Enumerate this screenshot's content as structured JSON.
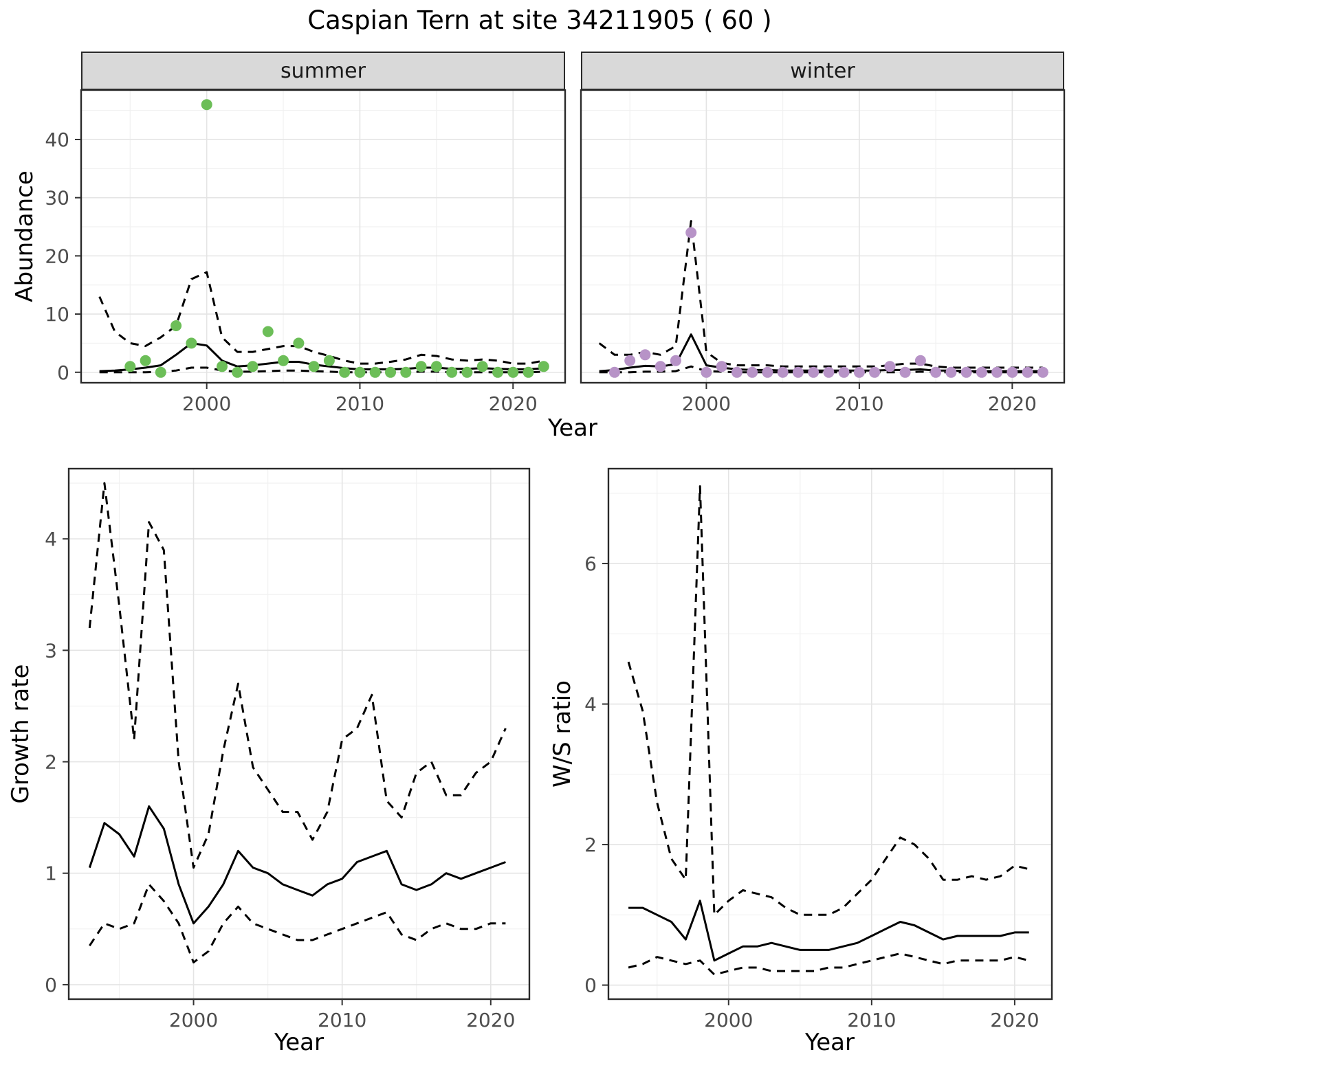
{
  "title": "Caspian Tern at site 34211905 ( 60 )",
  "facets": {
    "summer": "summer",
    "winter": "winter"
  },
  "axes": {
    "abundance_label": "Abundance",
    "year_label": "Year",
    "growth_label": "Growth rate",
    "ws_label": "W/S ratio"
  },
  "colors": {
    "summer_point": "#6cbe58",
    "winter_point": "#b793c7",
    "line": "#000000",
    "strip_bg": "#d9d9d9",
    "panel_border": "#2a2a2a",
    "grid_major": "#e4e4e4",
    "grid_minor": "#f1f1f1",
    "tick": "#333333",
    "tick_label": "#4d4d4d",
    "background": "#ffffff"
  },
  "chart_data": [
    {
      "id": "summer",
      "type": "scatter",
      "facet_label": "summer",
      "xlabel": "Year",
      "ylabel": "Abundance",
      "xlim": [
        1991.8,
        2023.4
      ],
      "ylim": [
        -1.8,
        48.5
      ],
      "xticks": [
        2000,
        2010,
        2020
      ],
      "yticks": [
        0,
        10,
        20,
        30,
        40
      ],
      "point_color": "#6cbe58",
      "points": {
        "x": [
          1995,
          1996,
          1997,
          1998,
          1999,
          2000,
          2001,
          2002,
          2003,
          2004,
          2005,
          2006,
          2007,
          2008,
          2009,
          2010,
          2011,
          2012,
          2013,
          2014,
          2015,
          2016,
          2017,
          2018,
          2019,
          2020,
          2021,
          2022
        ],
        "y": [
          1,
          2,
          0,
          8,
          5,
          46,
          1,
          0,
          1,
          7,
          2,
          5,
          1,
          2,
          0,
          0,
          0,
          0,
          0,
          1,
          1,
          0,
          0,
          1,
          0,
          0,
          0,
          1
        ]
      },
      "series": [
        {
          "name": "fit",
          "style": "solid",
          "x": [
            1993,
            1994,
            1995,
            1996,
            1997,
            1998,
            1999,
            2000,
            2001,
            2002,
            2003,
            2004,
            2005,
            2006,
            2007,
            2008,
            2009,
            2010,
            2011,
            2012,
            2013,
            2014,
            2015,
            2016,
            2017,
            2018,
            2019,
            2020,
            2021,
            2022
          ],
          "y": [
            0.2,
            0.3,
            0.5,
            0.8,
            1.2,
            3,
            5,
            4.6,
            2,
            1,
            1.2,
            1.5,
            1.8,
            1.8,
            1.3,
            1,
            0.7,
            0.5,
            0.5,
            0.5,
            0.6,
            0.8,
            0.8,
            0.6,
            0.6,
            0.7,
            0.6,
            0.5,
            0.5,
            0.7
          ]
        },
        {
          "name": "upper_ci",
          "style": "dashed",
          "x": [
            1993,
            1994,
            1995,
            1996,
            1997,
            1998,
            1999,
            2000,
            2001,
            2002,
            2003,
            2004,
            2005,
            2006,
            2007,
            2008,
            2009,
            2010,
            2011,
            2012,
            2013,
            2014,
            2015,
            2016,
            2017,
            2018,
            2019,
            2020,
            2021,
            2022
          ],
          "y": [
            13,
            7,
            5,
            4.5,
            6,
            8,
            16,
            17.2,
            6,
            3.5,
            3.5,
            4,
            4.5,
            4.5,
            3.5,
            2.8,
            2,
            1.5,
            1.5,
            1.8,
            2.2,
            3,
            2.8,
            2.2,
            2,
            2.2,
            2,
            1.5,
            1.5,
            2
          ]
        },
        {
          "name": "lower_ci",
          "style": "dashed",
          "x": [
            1993,
            1994,
            1995,
            1996,
            1997,
            1998,
            1999,
            2000,
            2001,
            2002,
            2003,
            2004,
            2005,
            2006,
            2007,
            2008,
            2009,
            2010,
            2011,
            2012,
            2013,
            2014,
            2015,
            2016,
            2017,
            2018,
            2019,
            2020,
            2021,
            2022
          ],
          "y": [
            0,
            0,
            0,
            0,
            0.1,
            0.3,
            0.8,
            0.8,
            0.3,
            0.1,
            0.1,
            0.2,
            0.3,
            0.3,
            0.2,
            0.1,
            0,
            0,
            0,
            0,
            0,
            0.1,
            0.1,
            0,
            0,
            0,
            0,
            0,
            0,
            0.1
          ]
        }
      ]
    },
    {
      "id": "winter",
      "type": "scatter",
      "facet_label": "winter",
      "xlabel": "Year",
      "ylabel": "Abundance",
      "xlim": [
        1991.8,
        2023.4
      ],
      "ylim": [
        -1.8,
        48.5
      ],
      "xticks": [
        2000,
        2010,
        2020
      ],
      "yticks": [
        0,
        10,
        20,
        30,
        40
      ],
      "point_color": "#b793c7",
      "points": {
        "x": [
          1994,
          1995,
          1996,
          1997,
          1998,
          1999,
          2000,
          2001,
          2002,
          2003,
          2004,
          2005,
          2006,
          2007,
          2008,
          2009,
          2010,
          2011,
          2012,
          2013,
          2014,
          2015,
          2016,
          2017,
          2018,
          2019,
          2020,
          2021,
          2022
        ],
        "y": [
          0,
          2,
          3,
          1,
          2,
          24,
          0,
          1,
          0,
          0,
          0,
          0,
          0,
          0,
          0,
          0,
          0,
          0,
          1,
          0,
          2,
          0,
          0,
          0,
          0,
          0,
          0,
          0,
          0
        ]
      },
      "series": [
        {
          "name": "fit",
          "style": "solid",
          "x": [
            1993,
            1994,
            1995,
            1996,
            1997,
            1998,
            1999,
            2000,
            2001,
            2002,
            2003,
            2004,
            2005,
            2006,
            2007,
            2008,
            2009,
            2010,
            2011,
            2012,
            2013,
            2014,
            2015,
            2016,
            2017,
            2018,
            2019,
            2020,
            2021,
            2022
          ],
          "y": [
            0.2,
            0.4,
            0.8,
            1.1,
            1,
            1.4,
            6.5,
            1.2,
            0.8,
            0.5,
            0.4,
            0.4,
            0.3,
            0.3,
            0.3,
            0.3,
            0.3,
            0.3,
            0.3,
            0.4,
            0.4,
            0.5,
            0.3,
            0.3,
            0.2,
            0.2,
            0.2,
            0.2,
            0.2,
            0.2
          ]
        },
        {
          "name": "upper_ci",
          "style": "dashed",
          "x": [
            1993,
            1994,
            1995,
            1996,
            1997,
            1998,
            1999,
            2000,
            2001,
            2002,
            2003,
            2004,
            2005,
            2006,
            2007,
            2008,
            2009,
            2010,
            2011,
            2012,
            2013,
            2014,
            2015,
            2016,
            2017,
            2018,
            2019,
            2020,
            2021,
            2022
          ],
          "y": [
            5,
            3,
            3,
            3.5,
            3,
            4.5,
            26,
            3.5,
            1.6,
            1.2,
            1.2,
            1.2,
            1,
            1,
            1,
            1,
            1,
            1,
            1,
            1.2,
            1.5,
            1.5,
            1,
            0.8,
            0.8,
            0.8,
            0.8,
            0.8,
            0.8,
            0.8
          ]
        },
        {
          "name": "lower_ci",
          "style": "dashed",
          "x": [
            1993,
            1994,
            1995,
            1996,
            1997,
            1998,
            1999,
            2000,
            2001,
            2002,
            2003,
            2004,
            2005,
            2006,
            2007,
            2008,
            2009,
            2010,
            2011,
            2012,
            2013,
            2014,
            2015,
            2016,
            2017,
            2018,
            2019,
            2020,
            2021,
            2022
          ],
          "y": [
            0,
            0,
            0,
            0.1,
            0.1,
            0.2,
            1,
            0.2,
            0.1,
            0,
            0,
            0,
            0,
            0,
            0,
            0,
            0,
            0,
            0,
            0,
            0,
            0.1,
            0,
            0,
            0,
            0,
            0,
            0,
            0,
            0
          ]
        }
      ]
    },
    {
      "id": "growth",
      "type": "line",
      "xlabel": "Year",
      "ylabel": "Growth rate",
      "xlim": [
        1991.6,
        2022.6
      ],
      "ylim": [
        -0.13,
        4.63
      ],
      "xticks": [
        2000,
        2010,
        2020
      ],
      "yticks": [
        0,
        1,
        2,
        3,
        4
      ],
      "series": [
        {
          "name": "fit",
          "style": "solid",
          "x": [
            1993,
            1994,
            1995,
            1996,
            1997,
            1998,
            1999,
            2000,
            2001,
            2002,
            2003,
            2004,
            2005,
            2006,
            2007,
            2008,
            2009,
            2010,
            2011,
            2012,
            2013,
            2014,
            2015,
            2016,
            2017,
            2018,
            2019,
            2020,
            2021
          ],
          "y": [
            1.05,
            1.45,
            1.35,
            1.15,
            1.6,
            1.4,
            0.9,
            0.55,
            0.7,
            0.9,
            1.2,
            1.05,
            1,
            0.9,
            0.85,
            0.8,
            0.9,
            0.95,
            1.1,
            1.15,
            1.2,
            0.9,
            0.85,
            0.9,
            1,
            0.95,
            1,
            1.05,
            1.1
          ]
        },
        {
          "name": "upper_ci",
          "style": "dashed",
          "x": [
            1993,
            1994,
            1995,
            1996,
            1997,
            1998,
            1999,
            2000,
            2001,
            2002,
            2003,
            2004,
            2005,
            2006,
            2007,
            2008,
            2009,
            2010,
            2011,
            2012,
            2013,
            2014,
            2015,
            2016,
            2017,
            2018,
            2019,
            2020,
            2021
          ],
          "y": [
            3.2,
            4.5,
            3.4,
            2.2,
            4.15,
            3.9,
            2,
            1.05,
            1.35,
            2.1,
            2.7,
            1.95,
            1.75,
            1.55,
            1.55,
            1.3,
            1.55,
            2.2,
            2.3,
            2.6,
            1.65,
            1.5,
            1.9,
            2,
            1.7,
            1.7,
            1.9,
            2,
            2.3
          ]
        },
        {
          "name": "lower_ci",
          "style": "dashed",
          "x": [
            1993,
            1994,
            1995,
            1996,
            1997,
            1998,
            1999,
            2000,
            2001,
            2002,
            2003,
            2004,
            2005,
            2006,
            2007,
            2008,
            2009,
            2010,
            2011,
            2012,
            2013,
            2014,
            2015,
            2016,
            2017,
            2018,
            2019,
            2020,
            2021
          ],
          "y": [
            0.35,
            0.55,
            0.5,
            0.55,
            0.9,
            0.75,
            0.55,
            0.2,
            0.3,
            0.55,
            0.7,
            0.55,
            0.5,
            0.45,
            0.4,
            0.4,
            0.45,
            0.5,
            0.55,
            0.6,
            0.65,
            0.45,
            0.4,
            0.5,
            0.55,
            0.5,
            0.5,
            0.55,
            0.55
          ]
        }
      ]
    },
    {
      "id": "ws",
      "type": "line",
      "xlabel": "Year",
      "ylabel": "W/S ratio",
      "xlim": [
        1991.6,
        2022.6
      ],
      "ylim": [
        -0.2,
        7.35
      ],
      "xticks": [
        2000,
        2010,
        2020
      ],
      "yticks": [
        0,
        2,
        4,
        6
      ],
      "series": [
        {
          "name": "fit",
          "style": "solid",
          "x": [
            1993,
            1994,
            1995,
            1996,
            1997,
            1998,
            1999,
            2000,
            2001,
            2002,
            2003,
            2004,
            2005,
            2006,
            2007,
            2008,
            2009,
            2010,
            2011,
            2012,
            2013,
            2014,
            2015,
            2016,
            2017,
            2018,
            2019,
            2020,
            2021
          ],
          "y": [
            1.1,
            1.1,
            1,
            0.9,
            0.65,
            1.2,
            0.35,
            0.45,
            0.55,
            0.55,
            0.6,
            0.55,
            0.5,
            0.5,
            0.5,
            0.55,
            0.6,
            0.7,
            0.8,
            0.9,
            0.85,
            0.75,
            0.65,
            0.7,
            0.7,
            0.7,
            0.7,
            0.75,
            0.75
          ]
        },
        {
          "name": "upper_ci",
          "style": "dashed",
          "x": [
            1993,
            1994,
            1995,
            1996,
            1997,
            1998,
            1999,
            2000,
            2001,
            2002,
            2003,
            2004,
            2005,
            2006,
            2007,
            2008,
            2009,
            2010,
            2011,
            2012,
            2013,
            2014,
            2015,
            2016,
            2017,
            2018,
            2019,
            2020,
            2021
          ],
          "y": [
            4.6,
            3.9,
            2.6,
            1.8,
            1.5,
            7.1,
            1,
            1.2,
            1.35,
            1.3,
            1.25,
            1.1,
            1,
            1,
            1,
            1.1,
            1.3,
            1.5,
            1.8,
            2.1,
            2,
            1.8,
            1.5,
            1.5,
            1.55,
            1.5,
            1.55,
            1.7,
            1.65
          ]
        },
        {
          "name": "lower_ci",
          "style": "dashed",
          "x": [
            1993,
            1994,
            1995,
            1996,
            1997,
            1998,
            1999,
            2000,
            2001,
            2002,
            2003,
            2004,
            2005,
            2006,
            2007,
            2008,
            2009,
            2010,
            2011,
            2012,
            2013,
            2014,
            2015,
            2016,
            2017,
            2018,
            2019,
            2020,
            2021
          ],
          "y": [
            0.25,
            0.3,
            0.4,
            0.35,
            0.3,
            0.35,
            0.15,
            0.2,
            0.25,
            0.25,
            0.2,
            0.2,
            0.2,
            0.2,
            0.25,
            0.25,
            0.3,
            0.35,
            0.4,
            0.45,
            0.4,
            0.35,
            0.3,
            0.35,
            0.35,
            0.35,
            0.35,
            0.4,
            0.35
          ]
        }
      ]
    }
  ]
}
